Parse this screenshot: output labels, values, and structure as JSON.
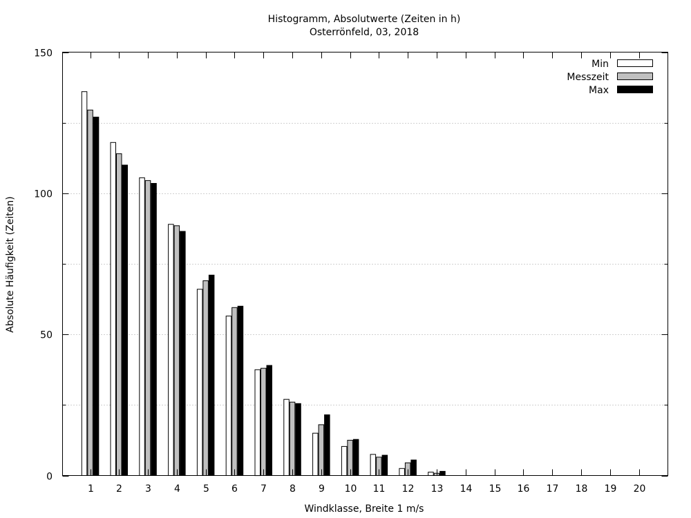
{
  "chart_data": {
    "type": "bar",
    "title": "Histogramm, Absolutwerte (Zeiten in h)",
    "subtitle": "Osterrönfeld, 03, 2018",
    "xlabel": "Windklasse, Breite 1 m/s",
    "ylabel": "Absolute Häufigkeit (Zeiten)",
    "ylim": [
      0,
      150
    ],
    "yticks": [
      "0",
      "50",
      "100",
      "150"
    ],
    "minor_grid_values": [
      25,
      75,
      125
    ],
    "grid": "y-dotted",
    "legend_position": "top-right",
    "categories": [
      "1",
      "2",
      "3",
      "4",
      "5",
      "6",
      "7",
      "8",
      "9",
      "10",
      "11",
      "12",
      "13",
      "14",
      "15",
      "16",
      "17",
      "18",
      "19",
      "20"
    ],
    "series": [
      {
        "name": "Min",
        "color": "#ffffff",
        "values": [
          136,
          118,
          105.5,
          89,
          66,
          56.5,
          37.5,
          27,
          15,
          10.3,
          7.5,
          2.5,
          1.2,
          0,
          0,
          0,
          0,
          0,
          0,
          0
        ]
      },
      {
        "name": "Messzeit",
        "color": "#c0c0c0",
        "values": [
          129.5,
          114,
          104.5,
          88.5,
          69,
          59.5,
          38,
          26,
          18,
          12.5,
          6.5,
          4.5,
          0.8,
          0,
          0,
          0,
          0,
          0,
          0,
          0
        ]
      },
      {
        "name": "Max",
        "color": "#000000",
        "values": [
          127,
          110,
          103.5,
          86.5,
          71,
          60,
          39,
          25.5,
          21.5,
          12.8,
          7.2,
          5.5,
          1.5,
          0,
          0,
          0,
          0,
          0,
          0,
          0
        ]
      }
    ]
  }
}
